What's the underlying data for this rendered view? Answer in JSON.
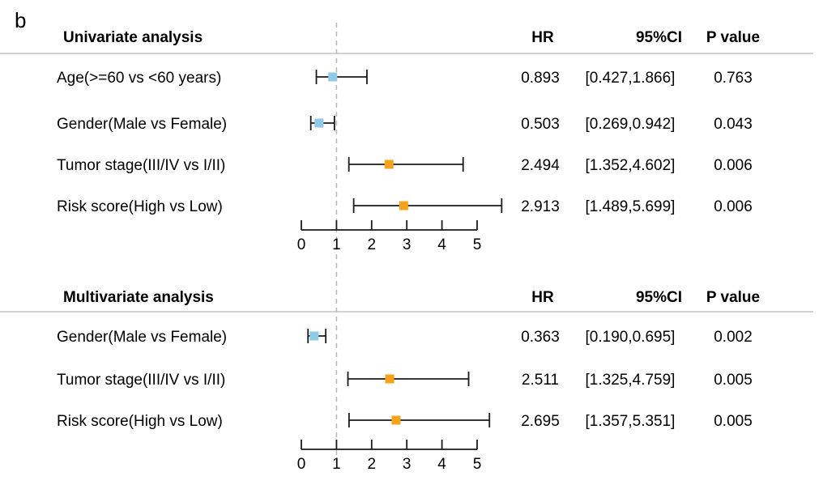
{
  "panel_label": "b",
  "colors": {
    "protective": "#8fcbe6",
    "risk": "#f5a31a",
    "whisker": "#1a1a1a",
    "reference": "#b8b8b8",
    "rule": "#c4c4c4"
  },
  "chart_data": [
    {
      "type": "forest",
      "title": "Univariate analysis",
      "columns": {
        "hr": "HR",
        "ci": "95%CI",
        "p": "P value"
      },
      "reference_value": 1,
      "xlim": [
        0,
        5
      ],
      "x_ticks": [
        0,
        1,
        2,
        3,
        4,
        5
      ],
      "rows": [
        {
          "label": "Age(>=60 vs <60 years)",
          "hr": 0.893,
          "lo": 0.427,
          "hi": 1.866,
          "hr_text": "0.893",
          "ci_text": "[0.427,1.866]",
          "p_text": "0.763"
        },
        {
          "label": "Gender(Male vs Female)",
          "hr": 0.503,
          "lo": 0.269,
          "hi": 0.942,
          "hr_text": "0.503",
          "ci_text": "[0.269,0.942]",
          "p_text": "0.043"
        },
        {
          "label": "Tumor stage(III/IV vs I/II)",
          "hr": 2.494,
          "lo": 1.352,
          "hi": 4.602,
          "hr_text": "2.494",
          "ci_text": "[1.352,4.602]",
          "p_text": "0.006"
        },
        {
          "label": "Risk score(High vs Low)",
          "hr": 2.913,
          "lo": 1.489,
          "hi": 5.699,
          "hr_text": "2.913",
          "ci_text": "[1.489,5.699]",
          "p_text": "0.006"
        }
      ]
    },
    {
      "type": "forest",
      "title": "Multivariate analysis",
      "columns": {
        "hr": "HR",
        "ci": "95%CI",
        "p": "P value"
      },
      "reference_value": 1,
      "xlim": [
        0,
        5
      ],
      "x_ticks": [
        0,
        1,
        2,
        3,
        4,
        5
      ],
      "rows": [
        {
          "label": "Gender(Male vs Female)",
          "hr": 0.363,
          "lo": 0.19,
          "hi": 0.695,
          "hr_text": "0.363",
          "ci_text": "[0.190,0.695]",
          "p_text": "0.002"
        },
        {
          "label": "Tumor stage(III/IV vs I/II)",
          "hr": 2.511,
          "lo": 1.325,
          "hi": 4.759,
          "hr_text": "2.511",
          "ci_text": "[1.325,4.759]",
          "p_text": "0.005"
        },
        {
          "label": "Risk score(High vs Low)",
          "hr": 2.695,
          "lo": 1.357,
          "hi": 5.351,
          "hr_text": "2.695",
          "ci_text": "[1.357,5.351]",
          "p_text": "0.005"
        }
      ]
    }
  ]
}
